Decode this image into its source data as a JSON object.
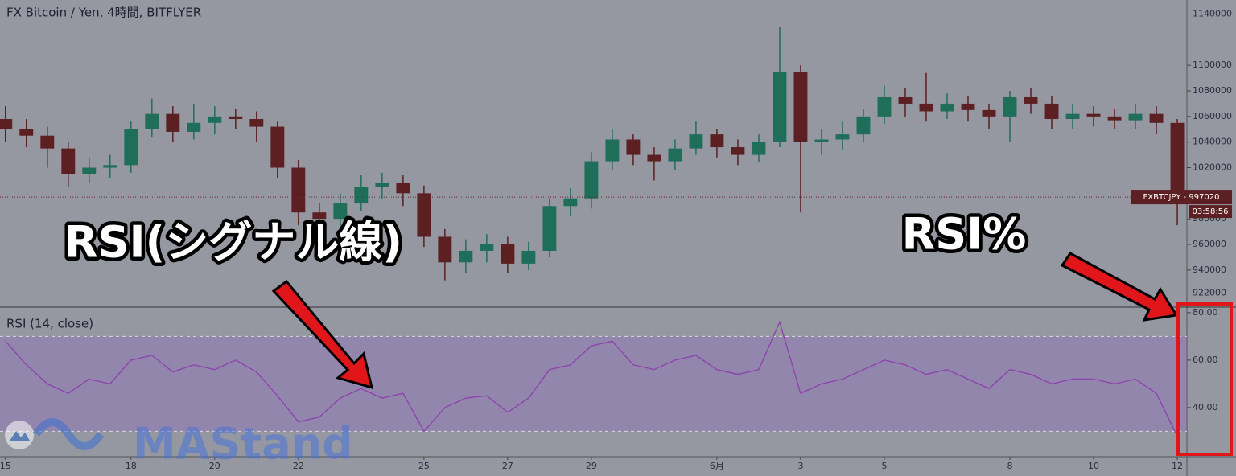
{
  "chart_data": [
    {
      "type": "candlestick",
      "title": "FX Bitcoin / Yen, 4時間, BITFLYER",
      "x": [
        0,
        0.5,
        1,
        1.5,
        2,
        2.5,
        3,
        3.5,
        4,
        4.5,
        5,
        5.5,
        6,
        6.5,
        7,
        7.5,
        8,
        8.5,
        9,
        9.5,
        10,
        10.5,
        11,
        11.5,
        12,
        12.5,
        13,
        13.5,
        14,
        14.5,
        15,
        15.5,
        16,
        16.5,
        17,
        17.5,
        18,
        18.5,
        19,
        19.5,
        20,
        20.5,
        21,
        21.5,
        22,
        22.5,
        23,
        23.5,
        24,
        24.5,
        25,
        25.5,
        26,
        26.5,
        27,
        27.5,
        28
      ],
      "open": [
        1058000,
        1050000,
        1045000,
        1035000,
        1015000,
        1020000,
        1022000,
        1050000,
        1062000,
        1048000,
        1055000,
        1060000,
        1058000,
        1052000,
        1020000,
        985000,
        980000,
        992000,
        1005000,
        1008000,
        1000000,
        966000,
        946000,
        955000,
        960000,
        945000,
        955000,
        990000,
        996000,
        1025000,
        1042000,
        1030000,
        1025000,
        1035000,
        1046000,
        1036000,
        1030000,
        1040000,
        1095000,
        1040000,
        1042000,
        1046000,
        1060000,
        1075000,
        1070000,
        1064000,
        1070000,
        1065000,
        1060000,
        1075000,
        1070000,
        1058000,
        1062000,
        1060000,
        1057000,
        1062000,
        1055000
      ],
      "high": [
        1068000,
        1058000,
        1052000,
        1040000,
        1028000,
        1030000,
        1056000,
        1074000,
        1068000,
        1070000,
        1068000,
        1066000,
        1064000,
        1056000,
        1026000,
        992000,
        1000000,
        1014000,
        1016000,
        1014000,
        1006000,
        972000,
        964000,
        968000,
        966000,
        962000,
        996000,
        1004000,
        1032000,
        1050000,
        1046000,
        1036000,
        1042000,
        1056000,
        1050000,
        1042000,
        1046000,
        1130000,
        1100000,
        1050000,
        1056000,
        1066000,
        1084000,
        1082000,
        1094000,
        1078000,
        1076000,
        1070000,
        1080000,
        1082000,
        1076000,
        1070000,
        1068000,
        1066000,
        1070000,
        1068000,
        1058000
      ],
      "low": [
        1040000,
        1036000,
        1020000,
        1005000,
        1008000,
        1012000,
        1016000,
        1044000,
        1040000,
        1042000,
        1046000,
        1050000,
        1040000,
        1012000,
        975000,
        965000,
        972000,
        986000,
        996000,
        990000,
        958000,
        932000,
        938000,
        946000,
        938000,
        940000,
        950000,
        982000,
        988000,
        1018000,
        1022000,
        1010000,
        1018000,
        1030000,
        1028000,
        1022000,
        1024000,
        1036000,
        985000,
        1030000,
        1034000,
        1040000,
        1054000,
        1060000,
        1056000,
        1058000,
        1056000,
        1050000,
        1040000,
        1062000,
        1050000,
        1050000,
        1052000,
        1050000,
        1050000,
        1046000,
        975000
      ],
      "close": [
        1050000,
        1045000,
        1035000,
        1015000,
        1020000,
        1022000,
        1050000,
        1062000,
        1048000,
        1055000,
        1060000,
        1058000,
        1052000,
        1020000,
        985000,
        980000,
        992000,
        1005000,
        1008000,
        1000000,
        966000,
        946000,
        955000,
        960000,
        945000,
        955000,
        990000,
        996000,
        1025000,
        1042000,
        1030000,
        1025000,
        1035000,
        1046000,
        1036000,
        1030000,
        1040000,
        1095000,
        1040000,
        1042000,
        1046000,
        1060000,
        1075000,
        1070000,
        1064000,
        1070000,
        1065000,
        1060000,
        1075000,
        1070000,
        1058000,
        1062000,
        1060000,
        1057000,
        1062000,
        1055000,
        997020
      ],
      "up_color": "#1f6e5a",
      "down_color": "#5c1f22",
      "xlim": [
        -0.13,
        28.23
      ],
      "ylim": [
        911000,
        1151000
      ],
      "yticks": [
        922000,
        940000,
        960000,
        980000,
        1020000,
        1040000,
        1060000,
        1080000,
        1100000,
        1140000
      ],
      "price_line": {
        "value": 997020,
        "label": "FXBTCJPY - 997020"
      },
      "countdown": "03:58:56"
    },
    {
      "type": "line",
      "title": "RSI (14, close)",
      "x": [
        0,
        0.5,
        1,
        1.5,
        2,
        2.5,
        3,
        3.5,
        4,
        4.5,
        5,
        5.5,
        6,
        6.5,
        7,
        7.5,
        8,
        8.5,
        9,
        9.5,
        10,
        10.5,
        11,
        11.5,
        12,
        12.5,
        13,
        13.5,
        14,
        14.5,
        15,
        15.5,
        16,
        16.5,
        17,
        17.5,
        18,
        18.5,
        19,
        19.5,
        20,
        20.5,
        21,
        21.5,
        22,
        22.5,
        23,
        23.5,
        24,
        24.5,
        25,
        25.5,
        26,
        26.5,
        27,
        27.5,
        28
      ],
      "values": [
        68,
        58,
        50,
        46,
        52,
        50,
        60,
        62,
        55,
        58,
        56,
        60,
        55,
        45,
        34,
        36,
        44,
        48,
        44,
        46,
        30,
        40,
        44,
        45,
        38,
        44,
        56,
        58,
        66,
        68,
        58,
        56,
        60,
        62,
        56,
        54,
        56,
        76,
        46,
        50,
        52,
        56,
        60,
        58,
        54,
        56,
        52,
        48,
        56,
        54,
        50,
        52,
        52,
        50,
        52,
        46,
        28
      ],
      "color": "#8e44ad",
      "band": [
        30,
        70
      ],
      "band_color": "rgba(140,90,200,0.28)",
      "xlim": [
        -0.13,
        28.23
      ],
      "ylim": [
        19.3,
        82
      ],
      "yticks": [
        {
          "value": 40,
          "label": "40.00"
        },
        {
          "value": 60,
          "label": "60.00"
        },
        {
          "value": 80,
          "label": "80.00"
        }
      ],
      "xticks": [
        {
          "value": 0,
          "label": "15"
        },
        {
          "value": 3,
          "label": "18"
        },
        {
          "value": 5,
          "label": "20"
        },
        {
          "value": 7,
          "label": "22"
        },
        {
          "value": 10,
          "label": "25"
        },
        {
          "value": 12,
          "label": "27"
        },
        {
          "value": 14,
          "label": "29"
        },
        {
          "value": 17,
          "label": "6月"
        },
        {
          "value": 19,
          "label": "3"
        },
        {
          "value": 21,
          "label": "5"
        },
        {
          "value": 24,
          "label": "8"
        },
        {
          "value": 26,
          "label": "10"
        },
        {
          "value": 28,
          "label": "12"
        }
      ]
    }
  ],
  "annotations": [
    "RSI(シグナル線)",
    "RSI%"
  ],
  "watermark": "MAStand"
}
